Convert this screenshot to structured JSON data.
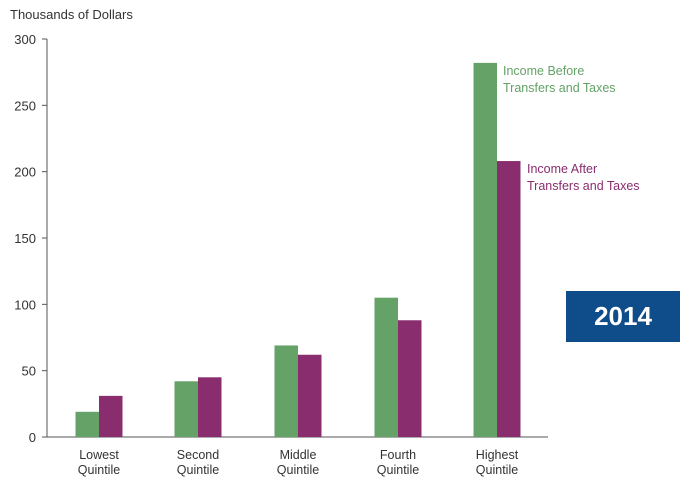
{
  "chart_data": {
    "type": "bar",
    "ylabel": "Thousands of Dollars",
    "ylim": [
      0,
      300
    ],
    "yticks": [
      0,
      50,
      100,
      150,
      200,
      250,
      300
    ],
    "categories": [
      [
        "Lowest",
        "Quintile"
      ],
      [
        "Second",
        "Quintile"
      ],
      [
        "Middle",
        "Quintile"
      ],
      [
        "Fourth",
        "Quintile"
      ],
      [
        "Highest",
        "Quintile"
      ]
    ],
    "series": [
      {
        "name": [
          "Income Before",
          "Transfers and Taxes"
        ],
        "color": "#64a267",
        "values": [
          19,
          42,
          69,
          105,
          282
        ]
      },
      {
        "name": [
          "Income After",
          "Transfers and Taxes"
        ],
        "color": "#8a2d6f",
        "values": [
          31,
          45,
          62,
          88,
          208
        ]
      }
    ],
    "grid": false,
    "legend": "direct labels beside highest-quintile bars"
  },
  "badge": {
    "text": "2014",
    "color": "#0f4c8a"
  }
}
